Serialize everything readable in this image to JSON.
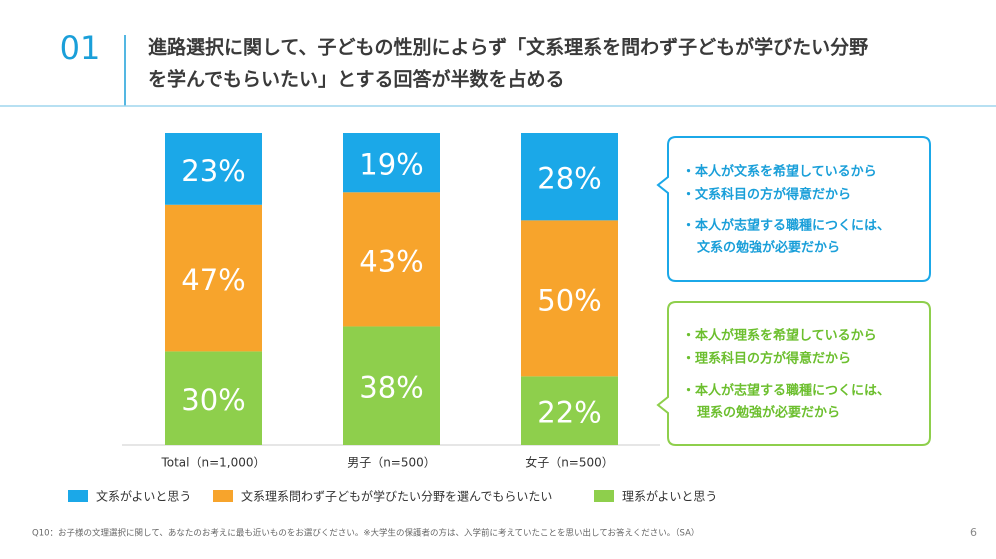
{
  "section_number": "01",
  "footnote": "Q10：お子様の文理選択に関して、あなたのお考えに最も近いものをお選びください。※大学生の保護者の方は、入学前に考えていたことを思い出してお答えください。（SA）",
  "page_number": "6",
  "chart_data": {
    "type": "stacked_bar",
    "title": [
      "進路選択に関して、子どもの性別によらず「文系理系を問わず子どもが学びたい分野",
      "を学んでもらいたい」とする回答が半数を占める"
    ],
    "categories": [
      "Total（n=1,000）",
      "男子（n=500）",
      "女子（n=500）"
    ],
    "series": [
      {
        "name": "文系がよいと思う",
        "color": "#1ba8e8",
        "values": [
          23,
          19,
          28
        ],
        "value_labels": [
          "23%",
          "19%",
          "28%"
        ]
      },
      {
        "name": "文系理系問わず子どもが学びたい分野を選んでもらいたい",
        "color": "#f7a42c",
        "values": [
          47,
          43,
          50
        ],
        "value_labels": [
          "47%",
          "43%",
          "50%"
        ]
      },
      {
        "name": "理系がよいと思う",
        "color": "#8ecf4c",
        "values": [
          30,
          38,
          22
        ],
        "value_labels": [
          "30%",
          "38%",
          "22%"
        ]
      }
    ],
    "ylim": [
      0,
      100
    ],
    "annotations": [
      {
        "color": "#1ba8e8",
        "lines": [
          "・本人が文系を希望しているから",
          "・文系科目の方が得意だから",
          "・本人が志望する職種につくには、",
          "文系の勉強が必要だから"
        ]
      },
      {
        "color": "#8ecf4c",
        "lines": [
          "・本人が理系を希望しているから",
          "・理系科目の方が得意だから",
          "・本人が志望する職種につくには、",
          "理系の勉強が必要だから"
        ]
      }
    ]
  }
}
